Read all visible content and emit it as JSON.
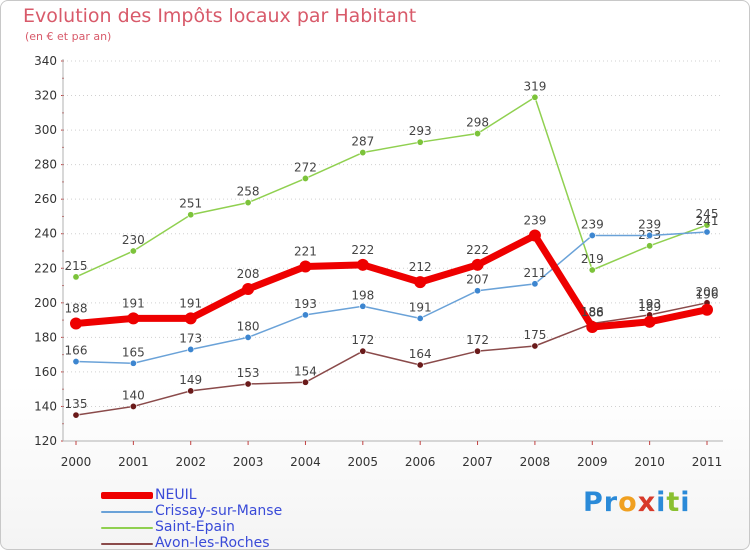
{
  "header": {
    "title": "Evolution des Impôts locaux par Habitant",
    "subtitle": "(en € et par an)"
  },
  "logo": {
    "text": "Proxiti",
    "letters": [
      {
        "ch": "P",
        "color": "#2a8ad8"
      },
      {
        "ch": "r",
        "color": "#2a8ad8"
      },
      {
        "ch": "o",
        "color": "#f0a020"
      },
      {
        "ch": "x",
        "color": "#d83a2a"
      },
      {
        "ch": "i",
        "color": "#2a8ad8"
      },
      {
        "ch": "t",
        "color": "#8ac030"
      },
      {
        "ch": "i",
        "color": "#2a8ad8"
      }
    ]
  },
  "chart_data": {
    "type": "line",
    "title": "Evolution des Impôts locaux par Habitant",
    "subtitle": "(en € et par an)",
    "xlabel": "",
    "ylabel": "",
    "x": [
      "2000",
      "2001",
      "2002",
      "2003",
      "2004",
      "2005",
      "2006",
      "2007",
      "2008",
      "2009",
      "2010",
      "2011"
    ],
    "ylim": [
      120,
      340
    ],
    "yticks": [
      120,
      140,
      160,
      180,
      200,
      220,
      240,
      260,
      280,
      300,
      320,
      340
    ],
    "grid": "horizontal dotted",
    "legend_position": "bottom-left",
    "series": [
      {
        "name": "Saint-Epain",
        "color": "#90d050",
        "marker_color": "#7cc33a",
        "emphasis": "normal",
        "values": [
          215,
          230,
          251,
          258,
          272,
          287,
          293,
          298,
          319,
          219,
          233,
          245
        ],
        "labels": [
          "215",
          "230",
          "251",
          "258",
          "272",
          "287",
          "293",
          "298",
          "319",
          "219",
          "233",
          "245"
        ]
      },
      {
        "name": "Crissay-sur-Manse",
        "color": "#6aa2d8",
        "marker_color": "#3d86d0",
        "emphasis": "normal",
        "values": [
          166,
          165,
          173,
          180,
          193,
          198,
          191,
          207,
          211,
          239,
          239,
          241
        ],
        "labels": [
          "166",
          "165",
          "173",
          "180",
          "193",
          "198",
          "191",
          "207",
          "211",
          "239",
          "239",
          "241"
        ]
      },
      {
        "name": "Avon-les-Roches",
        "color": "#8a4a4a",
        "marker_color": "#6a1a1a",
        "emphasis": "normal",
        "values": [
          135,
          140,
          149,
          153,
          154,
          172,
          164,
          172,
          175,
          188,
          193,
          200
        ],
        "labels": [
          "135",
          "140",
          "149",
          "153",
          "154",
          "172",
          "164",
          "172",
          "175",
          "188",
          "193",
          "200"
        ]
      },
      {
        "name": "NEUIL",
        "color": "#ee0000",
        "marker_color": "#ee0000",
        "emphasis": "bold",
        "values": [
          188,
          191,
          191,
          208,
          221,
          222,
          212,
          222,
          239,
          186,
          189,
          196
        ],
        "labels": [
          "188",
          "191",
          "191",
          "208",
          "221",
          "222",
          "212",
          "222",
          "239",
          "186",
          "189",
          "196"
        ]
      }
    ],
    "legend": [
      {
        "name": "NEUIL",
        "color": "#ee0000",
        "emphasis": "bold"
      },
      {
        "name": "Crissay-sur-Manse",
        "color": "#6aa2d8",
        "emphasis": "normal"
      },
      {
        "name": "Saint-Epain",
        "color": "#90d050",
        "emphasis": "normal"
      },
      {
        "name": "Avon-les-Roches",
        "color": "#8a4a4a",
        "emphasis": "normal"
      }
    ]
  }
}
